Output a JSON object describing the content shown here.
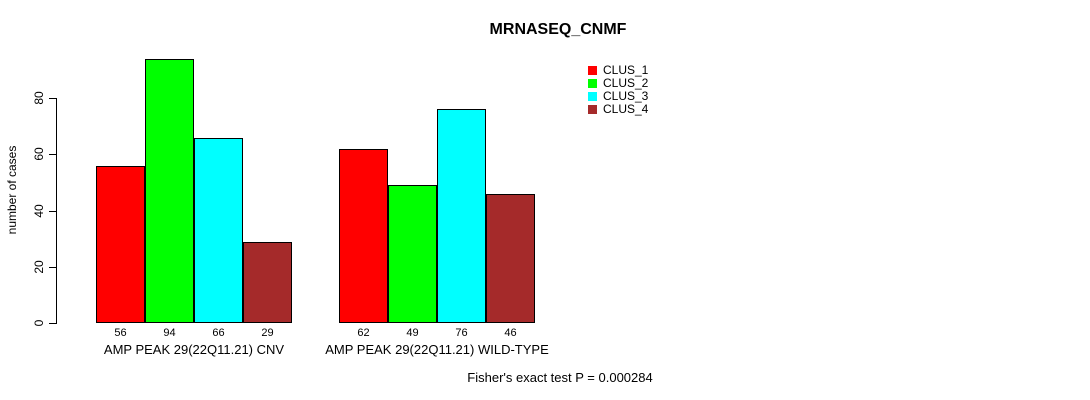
{
  "title": "MRNASEQ_CNMF",
  "footer": "Fisher's exact test P = 0.000284",
  "colors": {
    "clus_1": "#FF0000",
    "clus_2": "#00FF00",
    "clus_3": "#00FFFF",
    "clus_4": "#A52A2A",
    "axis": "#000000",
    "background": "#FFFFFF"
  },
  "chart_data": {
    "type": "bar",
    "title": "MRNASEQ_CNMF",
    "xlabel": "",
    "ylabel": "number of cases",
    "ylim": [
      0,
      94
    ],
    "yticks": [
      0,
      20,
      40,
      60,
      80
    ],
    "grid": false,
    "legend_position": "top-right",
    "categories": [
      "AMP PEAK 29(22Q11.21) CNV",
      "AMP PEAK 29(22Q11.21) WILD-TYPE"
    ],
    "series": [
      {
        "name": "CLUS_1",
        "color": "#FF0000",
        "values": [
          56,
          62
        ]
      },
      {
        "name": "CLUS_2",
        "color": "#00FF00",
        "values": [
          94,
          49
        ]
      },
      {
        "name": "CLUS_3",
        "color": "#00FFFF",
        "values": [
          66,
          76
        ]
      },
      {
        "name": "CLUS_4",
        "color": "#A52A2A",
        "values": [
          29,
          46
        ]
      }
    ],
    "bar_value_labels": [
      [
        56,
        94,
        66,
        29
      ],
      [
        62,
        49,
        76,
        46
      ]
    ],
    "annotation": "Fisher's exact test P = 0.000284"
  }
}
